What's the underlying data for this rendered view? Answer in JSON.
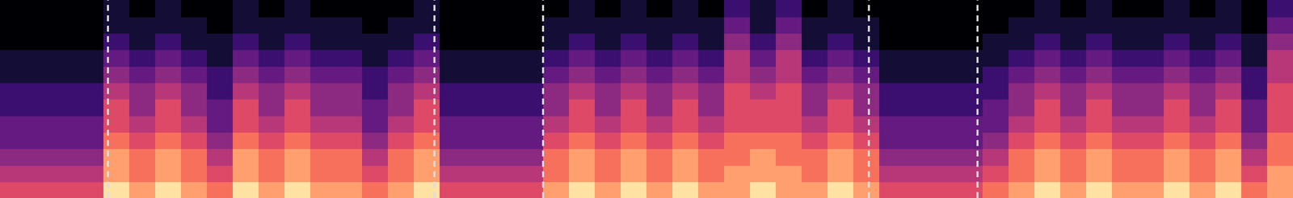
{
  "chart_data": {
    "type": "heatmap",
    "xlim": [
      0,
      100
    ],
    "ylim": [
      0,
      12
    ],
    "zlim": [
      0,
      9
    ],
    "tick_labels": false,
    "grid": false,
    "colors": [
      "#000004",
      "#140e36",
      "#3b0f70",
      "#641a80",
      "#8c2981",
      "#b73779",
      "#de4968",
      "#f7705c",
      "#fe9f6d",
      "#fde2a3"
    ],
    "cells": [
      [
        6,
        6,
        6,
        6,
        9,
        8,
        9,
        8,
        7,
        9,
        8,
        9,
        8,
        8,
        7,
        8,
        9,
        6,
        6,
        6,
        6,
        8,
        9,
        8,
        9,
        8,
        9,
        8,
        8,
        9,
        8,
        8,
        9,
        8,
        6,
        6,
        6,
        6,
        7,
        8,
        9,
        8,
        9,
        8,
        8,
        9,
        8,
        9,
        7,
        8
      ],
      [
        5,
        5,
        5,
        5,
        8,
        7,
        8,
        7,
        6,
        8,
        7,
        8,
        7,
        7,
        6,
        7,
        8,
        5,
        5,
        5,
        5,
        7,
        8,
        7,
        8,
        7,
        8,
        7,
        8,
        8,
        8,
        7,
        8,
        7,
        5,
        5,
        5,
        5,
        6,
        7,
        8,
        7,
        8,
        7,
        7,
        8,
        7,
        8,
        6,
        8
      ],
      [
        4,
        4,
        4,
        4,
        8,
        7,
        8,
        7,
        5,
        8,
        7,
        8,
        7,
        7,
        5,
        7,
        8,
        4,
        4,
        4,
        4,
        7,
        8,
        7,
        8,
        7,
        8,
        7,
        7,
        8,
        7,
        7,
        8,
        7,
        4,
        4,
        4,
        4,
        5,
        7,
        8,
        7,
        8,
        7,
        7,
        8,
        7,
        8,
        5,
        7
      ],
      [
        3,
        3,
        3,
        3,
        7,
        6,
        7,
        6,
        4,
        7,
        6,
        7,
        6,
        6,
        4,
        6,
        7,
        3,
        3,
        3,
        3,
        6,
        7,
        6,
        7,
        6,
        7,
        6,
        7,
        7,
        7,
        6,
        7,
        6,
        3,
        3,
        3,
        3,
        4,
        6,
        7,
        6,
        7,
        6,
        6,
        7,
        6,
        7,
        4,
        7
      ],
      [
        3,
        3,
        3,
        3,
        6,
        5,
        6,
        5,
        3,
        6,
        5,
        6,
        5,
        5,
        3,
        5,
        6,
        3,
        3,
        3,
        3,
        5,
        6,
        5,
        6,
        5,
        6,
        5,
        6,
        6,
        6,
        5,
        6,
        5,
        3,
        3,
        3,
        3,
        3,
        5,
        6,
        5,
        6,
        5,
        5,
        6,
        5,
        6,
        3,
        6
      ],
      [
        2,
        2,
        2,
        2,
        6,
        4,
        6,
        4,
        3,
        6,
        4,
        6,
        4,
        4,
        3,
        4,
        6,
        2,
        2,
        2,
        2,
        4,
        6,
        4,
        6,
        4,
        6,
        4,
        6,
        6,
        6,
        4,
        6,
        4,
        2,
        2,
        2,
        2,
        3,
        4,
        6,
        4,
        6,
        4,
        4,
        6,
        4,
        6,
        3,
        6
      ],
      [
        2,
        2,
        2,
        2,
        5,
        4,
        5,
        4,
        2,
        5,
        4,
        5,
        4,
        4,
        2,
        4,
        5,
        2,
        2,
        2,
        2,
        4,
        5,
        4,
        5,
        4,
        5,
        4,
        6,
        5,
        6,
        4,
        5,
        4,
        2,
        2,
        2,
        2,
        2,
        4,
        5,
        4,
        5,
        4,
        4,
        5,
        4,
        5,
        2,
        6
      ],
      [
        1,
        1,
        1,
        1,
        4,
        3,
        4,
        3,
        2,
        4,
        3,
        4,
        3,
        3,
        2,
        3,
        4,
        1,
        1,
        1,
        1,
        3,
        4,
        3,
        4,
        3,
        4,
        3,
        5,
        4,
        5,
        3,
        4,
        3,
        1,
        1,
        1,
        1,
        2,
        3,
        4,
        3,
        4,
        3,
        3,
        4,
        3,
        4,
        2,
        5
      ],
      [
        1,
        1,
        1,
        1,
        3,
        2,
        3,
        2,
        1,
        3,
        2,
        3,
        2,
        2,
        1,
        2,
        3,
        1,
        1,
        1,
        1,
        2,
        3,
        2,
        3,
        2,
        3,
        2,
        5,
        3,
        5,
        2,
        3,
        2,
        1,
        1,
        1,
        1,
        1,
        2,
        3,
        2,
        3,
        2,
        2,
        3,
        2,
        3,
        1,
        5
      ],
      [
        0,
        0,
        0,
        0,
        2,
        1,
        2,
        1,
        1,
        2,
        1,
        2,
        1,
        1,
        1,
        1,
        2,
        0,
        0,
        0,
        0,
        1,
        2,
        1,
        2,
        1,
        2,
        1,
        4,
        2,
        4,
        1,
        2,
        1,
        0,
        0,
        0,
        0,
        1,
        1,
        2,
        1,
        2,
        1,
        1,
        2,
        1,
        2,
        1,
        4
      ],
      [
        0,
        0,
        0,
        0,
        1,
        1,
        1,
        1,
        0,
        1,
        1,
        1,
        1,
        1,
        0,
        1,
        1,
        0,
        0,
        0,
        0,
        1,
        1,
        1,
        1,
        1,
        1,
        1,
        3,
        1,
        3,
        1,
        1,
        1,
        0,
        0,
        0,
        0,
        0,
        1,
        1,
        1,
        1,
        1,
        1,
        1,
        1,
        1,
        0,
        3
      ],
      [
        0,
        0,
        0,
        0,
        1,
        0,
        1,
        0,
        0,
        1,
        0,
        1,
        0,
        0,
        0,
        0,
        1,
        0,
        0,
        0,
        0,
        0,
        1,
        0,
        1,
        0,
        1,
        0,
        2,
        1,
        2,
        0,
        1,
        0,
        0,
        0,
        0,
        0,
        0,
        0,
        1,
        0,
        1,
        0,
        0,
        1,
        0,
        1,
        0,
        2
      ]
    ],
    "vlines": {
      "x": [
        8.35,
        33.6,
        42,
        67.2,
        75.6
      ],
      "color": "#dddddd",
      "line_style": "dashed"
    }
  }
}
